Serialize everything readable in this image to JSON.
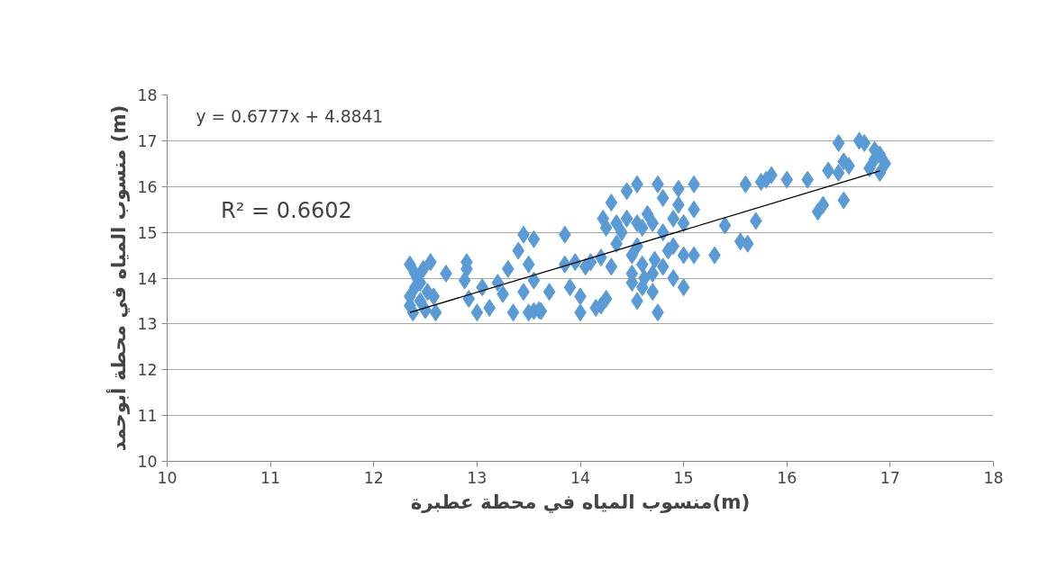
{
  "chart_data": {
    "type": "scatter",
    "xlabel": "منسوب المياه في محطة عطبرة(m)",
    "ylabel": "منسوب المياه في محطة أبوحمد (m)",
    "annotations": [
      "y = 0.6777x + 4.8841",
      "R² = 0.6602"
    ],
    "xlim": [
      10,
      18
    ],
    "xticks": [
      10,
      11,
      12,
      13,
      14,
      15,
      16,
      17,
      18
    ],
    "ylim": [
      10,
      18
    ],
    "yticks": [
      10,
      11,
      12,
      13,
      14,
      15,
      16,
      17,
      18
    ],
    "grid": "y",
    "series": [
      {
        "color": "#5b9bd5",
        "marker": "diamond",
        "x": [
          12.35,
          12.35,
          12.35,
          12.38,
          12.4,
          12.42,
          12.45,
          12.48,
          12.5,
          12.52,
          12.55,
          12.58,
          12.6,
          12.4,
          12.45,
          12.7,
          12.9,
          12.9,
          12.88,
          12.92,
          13.0,
          13.05,
          13.12,
          13.2,
          13.25,
          13.3,
          13.35,
          13.4,
          13.45,
          13.45,
          13.5,
          13.5,
          13.55,
          13.55,
          13.55,
          13.6,
          13.62,
          13.7,
          13.85,
          13.85,
          13.9,
          13.95,
          14.0,
          14.0,
          14.05,
          14.1,
          14.15,
          14.2,
          14.2,
          14.22,
          14.25,
          14.25,
          14.3,
          14.3,
          14.35,
          14.4,
          14.45,
          14.5,
          14.5,
          14.5,
          14.55,
          14.55,
          14.55,
          14.55,
          14.6,
          14.6,
          14.6,
          14.62,
          14.65,
          14.7,
          14.7,
          14.72,
          14.75,
          14.75,
          14.8,
          14.8,
          14.85,
          14.9,
          14.9,
          14.95,
          14.95,
          15.0,
          15.0,
          15.0,
          15.1,
          15.1,
          15.1,
          15.3,
          15.4,
          15.55,
          15.6,
          15.62,
          15.7,
          15.75,
          15.8,
          15.85,
          16.0,
          16.2,
          16.3,
          16.35,
          16.4,
          16.5,
          16.5,
          16.55,
          16.55,
          16.6,
          16.7,
          16.75,
          16.8,
          16.85,
          16.85,
          16.9,
          16.9,
          16.95,
          14.35,
          14.45,
          14.7,
          14.8,
          14.9
        ],
        "values": [
          14.3,
          13.6,
          13.4,
          13.25,
          13.8,
          14.0,
          13.5,
          14.2,
          13.3,
          13.7,
          14.35,
          13.6,
          13.25,
          14.1,
          13.9,
          14.1,
          14.35,
          14.2,
          13.95,
          13.55,
          13.25,
          13.8,
          13.35,
          13.9,
          13.65,
          14.2,
          13.25,
          14.6,
          13.7,
          14.95,
          14.3,
          13.25,
          14.85,
          13.95,
          13.28,
          13.3,
          13.28,
          13.7,
          14.95,
          14.3,
          13.8,
          14.35,
          13.6,
          13.25,
          14.25,
          14.35,
          13.35,
          13.4,
          14.45,
          15.3,
          13.55,
          15.1,
          15.65,
          14.25,
          15.2,
          15.0,
          15.9,
          14.1,
          14.5,
          13.9,
          16.05,
          15.2,
          14.7,
          13.5,
          15.1,
          14.3,
          13.8,
          14.0,
          15.4,
          15.2,
          13.7,
          14.4,
          16.05,
          13.25,
          15.75,
          15.0,
          14.6,
          15.3,
          14.0,
          15.95,
          15.6,
          13.8,
          14.5,
          15.2,
          16.05,
          15.5,
          14.5,
          14.5,
          15.15,
          14.8,
          16.05,
          14.75,
          15.25,
          16.1,
          16.15,
          16.25,
          16.15,
          16.15,
          15.45,
          15.6,
          16.35,
          16.3,
          16.95,
          15.7,
          16.55,
          16.45,
          17.0,
          16.95,
          16.4,
          16.8,
          16.6,
          16.3,
          16.7,
          16.5,
          14.75,
          15.3,
          14.1,
          14.25,
          14.7
        ]
      },
      {
        "type": "line",
        "color": "#000000",
        "x": [
          12.35,
          16.9
        ],
        "values": [
          13.25,
          16.34
        ]
      }
    ]
  }
}
